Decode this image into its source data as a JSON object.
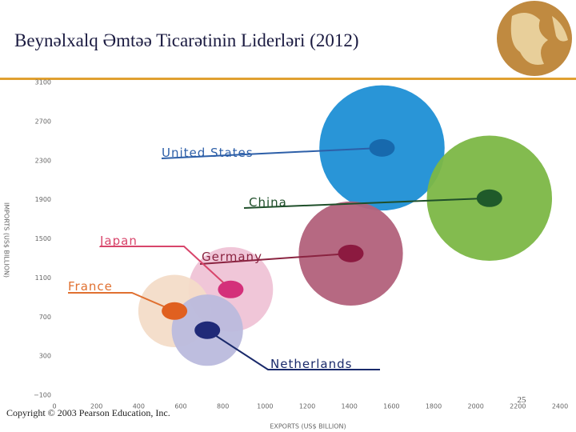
{
  "header": {
    "title": "Beynəlxalq Əmtəə Ticarətinin Liderləri (2012)"
  },
  "chart_data": {
    "type": "bubble",
    "x_label": "EXPORTS (US$ BILLION)",
    "y_label": "IMPORTS (US$ BILLION)",
    "xlim": [
      0,
      2400
    ],
    "xticks": [
      0,
      200,
      400,
      600,
      800,
      1000,
      1200,
      1400,
      1600,
      1800,
      2000,
      2200,
      2400
    ],
    "ylim": [
      -100,
      3100
    ],
    "yticks": [
      {
        "value": -100,
        "label": "−100"
      },
      300,
      700,
      1100,
      1500,
      1900,
      2300,
      2700,
      3100
    ],
    "grid": false,
    "series": [
      {
        "name": "United States",
        "color": "#1e8fd5",
        "dot_color": "#1769ad",
        "label_color": "#2d5fa8",
        "x": [
          1555
        ],
        "values": [
          2430
        ]
      },
      {
        "name": "China",
        "color": "#7cb746",
        "dot_color": "#1f5a2a",
        "label_color": "#1f4f2a",
        "x": [
          2065
        ],
        "values": [
          1915
        ]
      },
      {
        "name": "Germany",
        "color": "#b2617b",
        "dot_color": "#8c1a40",
        "label_color": "#8a2340",
        "x": [
          1407
        ],
        "values": [
          1350
        ]
      },
      {
        "name": "Japan",
        "color": "#efc3d6",
        "dot_color": "#d4307a",
        "label_color": "#d8456b",
        "x": [
          837
        ],
        "values": [
          982
        ]
      },
      {
        "name": "France",
        "color": "#f3dcc8",
        "dot_color": "#e06020",
        "label_color": "#e07030",
        "x": [
          570
        ],
        "values": [
          761
        ]
      },
      {
        "name": "Netherlands",
        "color": "#babadd",
        "dot_color": "#202a78",
        "label_color": "#1a2a6b",
        "x": [
          726
        ],
        "values": [
          565
        ]
      }
    ]
  },
  "footer": {
    "copyright": "Copyright © 2003 Pearson Education, Inc.",
    "page": "25"
  }
}
